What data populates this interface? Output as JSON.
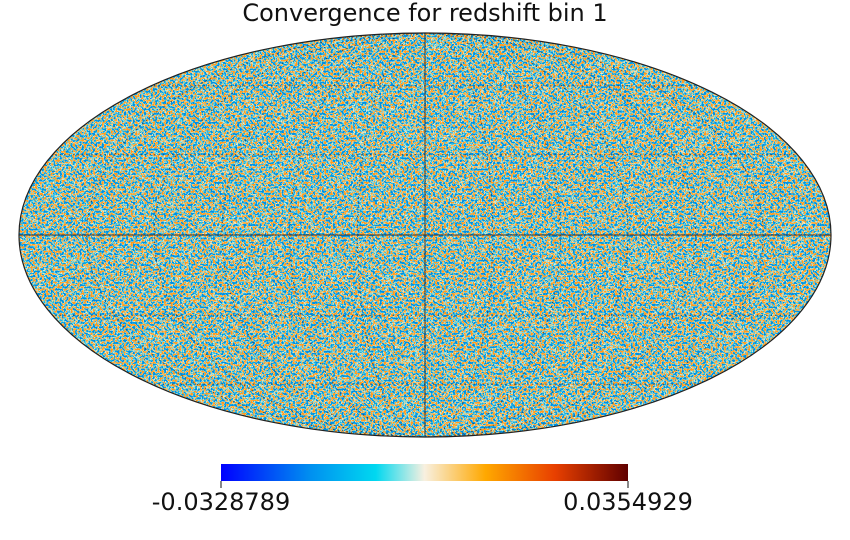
{
  "title": "Convergence for redshift bin 1",
  "colorbar": {
    "min_label": "-0.0328789",
    "max_label": "0.0354929"
  }
}
